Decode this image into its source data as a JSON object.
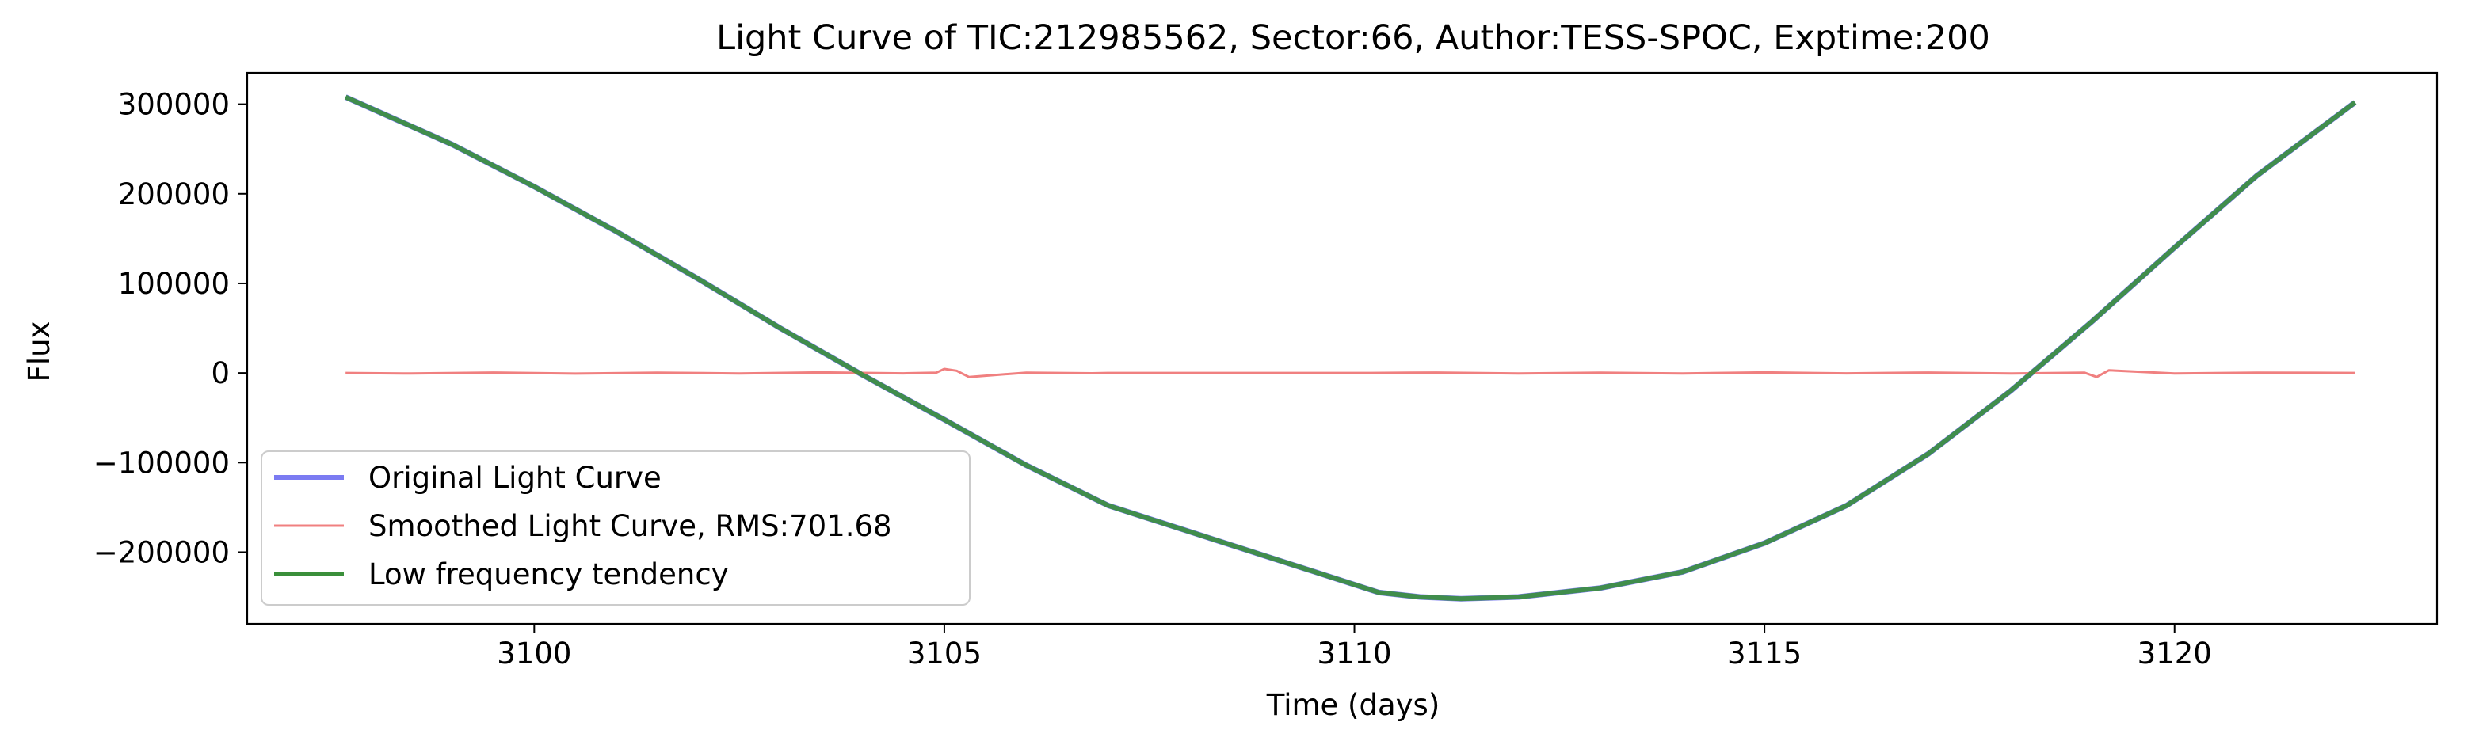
{
  "chart_data": {
    "type": "line",
    "title": "Light Curve of TIC:212985562, Sector:66, Author:TESS-SPOC, Exptime:200",
    "xlabel": "Time (days)",
    "ylabel": "Flux",
    "xlim": [
      3096.5,
      3123.2
    ],
    "ylim": [
      -280000,
      335000
    ],
    "xticks": [
      3100,
      3105,
      3110,
      3115,
      3120
    ],
    "xtick_labels": [
      "3100",
      "3105",
      "3110",
      "3115",
      "3120"
    ],
    "yticks": [
      -200000,
      -100000,
      0,
      100000,
      200000,
      300000
    ],
    "ytick_labels": [
      "−200000",
      "−100000",
      "0",
      "100000",
      "200000",
      "300000"
    ],
    "grid": false,
    "legend_position": "lower-left",
    "series": [
      {
        "name": "Original Light Curve",
        "color": "#7b7bf2",
        "x": [
          3097.7,
          3099.0,
          3100.0,
          3101.0,
          3102.0,
          3103.0,
          3104.0,
          3105.0,
          3106.0,
          3107.0,
          3110.3,
          3110.8,
          3111.3,
          3112.0,
          3113.0,
          3114.0,
          3115.0,
          3116.0,
          3117.0,
          3118.0,
          3119.0,
          3120.0,
          3121.0,
          3122.2
        ],
        "y": [
          308000,
          255000,
          208000,
          158000,
          105000,
          50000,
          -2000,
          -52000,
          -103000,
          -148000,
          -245000,
          -250000,
          -252000,
          -250000,
          -240000,
          -222000,
          -190000,
          -148000,
          -90000,
          -20000,
          58000,
          140000,
          220000,
          302000
        ]
      },
      {
        "name": "Smoothed Light Curve, RMS:701.68",
        "color": "#f08080",
        "x": [
          3097.7,
          3098.5,
          3099.5,
          3100.5,
          3101.5,
          3102.5,
          3103.5,
          3104.5,
          3104.9,
          3105.0,
          3105.15,
          3105.3,
          3106.0,
          3106.8,
          3107.0,
          3108.0,
          3109.0,
          3110.2,
          3111.0,
          3112.0,
          3113.0,
          3114.0,
          3115.0,
          3116.0,
          3117.0,
          3118.0,
          3118.9,
          3119.05,
          3119.2,
          3120.0,
          3121.0,
          3122.2
        ],
        "y": [
          0,
          -600,
          500,
          -700,
          400,
          -500,
          600,
          -400,
          300,
          4500,
          2500,
          -4500,
          400,
          -300,
          0,
          0,
          0,
          0,
          500,
          -600,
          400,
          -500,
          600,
          -400,
          500,
          -600,
          400,
          -4500,
          3000,
          -500,
          400,
          0
        ]
      },
      {
        "name": "Low frequency tendency",
        "color": "#3a8f3a",
        "x": [
          3097.7,
          3099.0,
          3100.0,
          3101.0,
          3102.0,
          3103.0,
          3104.0,
          3105.0,
          3106.0,
          3107.0,
          3110.3,
          3110.8,
          3111.3,
          3112.0,
          3113.0,
          3114.0,
          3115.0,
          3116.0,
          3117.0,
          3118.0,
          3119.0,
          3120.0,
          3121.0,
          3122.2
        ],
        "y": [
          308000,
          255000,
          208000,
          158000,
          105000,
          50000,
          -2000,
          -52000,
          -103000,
          -148000,
          -245000,
          -250000,
          -252000,
          -250000,
          -240000,
          -222000,
          -190000,
          -148000,
          -90000,
          -20000,
          58000,
          140000,
          220000,
          302000
        ]
      }
    ]
  }
}
